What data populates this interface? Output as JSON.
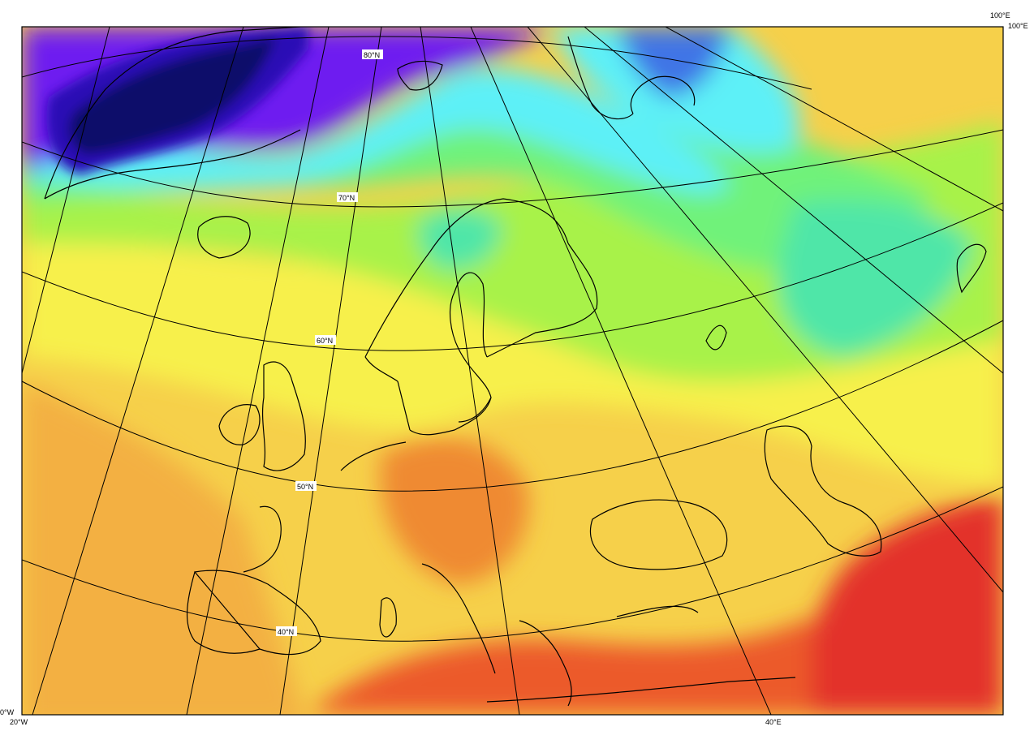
{
  "map": {
    "latitude_labels": [
      "80°N",
      "70°N",
      "60°N",
      "50°N",
      "40°N"
    ],
    "corner_labels": {
      "top_right_outer": "100°E",
      "top_right_inner": "100°E",
      "bottom_left_edge": "0°W",
      "bottom_left": "20°W",
      "bottom_center": "40°E"
    },
    "colors": {
      "dark_navy": "#0b0a6b",
      "deep_blue": "#2a0fb5",
      "violet": "#6e1ff0",
      "blue": "#3f74e6",
      "cyan": "#5df0f7",
      "aqua_green": "#4fe6a8",
      "light_green": "#6ff27a",
      "green_yellow": "#a8f24a",
      "yellow": "#f7f04b",
      "yellow_orange": "#f6d04a",
      "orange": "#f3b042",
      "dark_orange": "#ef8a32",
      "red_orange": "#ec5a2a",
      "red": "#e3302a",
      "graticule": "#000000",
      "coastline": "#000000"
    }
  }
}
